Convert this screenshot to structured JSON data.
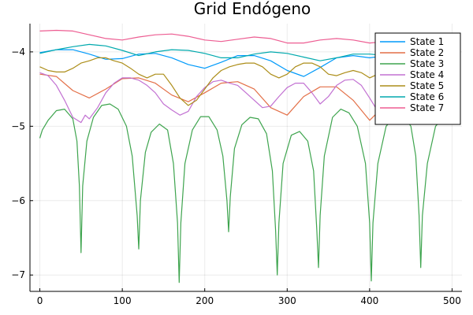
{
  "chart_data": {
    "type": "line",
    "title": "Grid Endógeno",
    "xlabel": "",
    "ylabel": "",
    "xlim": [
      -12,
      512
    ],
    "ylim": [
      -7.22,
      -3.62
    ],
    "xticks": [
      0,
      100,
      200,
      300,
      400,
      500
    ],
    "yticks": [
      -7,
      -6,
      -5,
      -4
    ],
    "xtick_labels": [
      "0",
      "100",
      "200",
      "300",
      "400",
      "500"
    ],
    "ytick_labels": [
      "−7",
      "−6",
      "−5",
      "−4"
    ],
    "grid": true,
    "legend_position": "top-right",
    "series": [
      {
        "name": "State 1",
        "color": "#009AFA",
        "x": [
          0,
          20,
          40,
          60,
          80,
          100,
          120,
          140,
          160,
          180,
          200,
          220,
          240,
          260,
          280,
          300,
          320,
          340,
          360,
          380,
          400,
          420,
          440,
          460,
          480,
          500
        ],
        "y": [
          -4.01,
          -3.97,
          -3.97,
          -4.03,
          -4.1,
          -4.09,
          -4.03,
          -4.02,
          -4.08,
          -4.17,
          -4.22,
          -4.14,
          -4.05,
          -4.05,
          -4.12,
          -4.25,
          -4.33,
          -4.21,
          -4.08,
          -4.05,
          -4.08,
          -4.05,
          -4.02,
          -4.02,
          -4.05,
          -4.06
        ]
      },
      {
        "name": "State 2",
        "color": "#E36F47",
        "x": [
          0,
          20,
          40,
          60,
          80,
          100,
          120,
          140,
          160,
          180,
          200,
          220,
          240,
          260,
          280,
          300,
          320,
          340,
          360,
          380,
          400,
          420,
          440,
          460,
          480,
          500
        ],
        "y": [
          -4.3,
          -4.33,
          -4.52,
          -4.62,
          -4.5,
          -4.36,
          -4.35,
          -4.42,
          -4.58,
          -4.67,
          -4.55,
          -4.42,
          -4.4,
          -4.5,
          -4.75,
          -4.85,
          -4.6,
          -4.47,
          -4.47,
          -4.65,
          -4.92,
          -4.7,
          -4.6,
          -4.55,
          -4.5,
          -4.62
        ]
      },
      {
        "name": "State 3",
        "color": "#3EA44E",
        "x": [
          0,
          3,
          10,
          20,
          30,
          40,
          45,
          48,
          50,
          52,
          57,
          65,
          75,
          85,
          95,
          105,
          112,
          118,
          120,
          122,
          128,
          135,
          145,
          155,
          162,
          167,
          169,
          171,
          176,
          185,
          195,
          205,
          215,
          222,
          227,
          229,
          231,
          236,
          245,
          255,
          265,
          275,
          282,
          286,
          288,
          290,
          295,
          305,
          315,
          325,
          332,
          336,
          338,
          340,
          345,
          355,
          365,
          375,
          385,
          395,
          400,
          402,
          404,
          410,
          420,
          430,
          440,
          450,
          456,
          460,
          462,
          464,
          470,
          480,
          490,
          500
        ],
        "y": [
          -5.16,
          -5.05,
          -4.92,
          -4.79,
          -4.77,
          -4.9,
          -5.2,
          -5.8,
          -6.7,
          -5.8,
          -5.2,
          -4.88,
          -4.72,
          -4.7,
          -4.77,
          -5.0,
          -5.4,
          -6.2,
          -6.65,
          -6.0,
          -5.35,
          -5.08,
          -4.97,
          -5.05,
          -5.5,
          -6.3,
          -7.1,
          -6.3,
          -5.5,
          -5.05,
          -4.87,
          -4.87,
          -5.05,
          -5.4,
          -6.0,
          -6.42,
          -5.95,
          -5.3,
          -4.98,
          -4.88,
          -4.9,
          -5.1,
          -5.6,
          -6.4,
          -7.0,
          -6.3,
          -5.5,
          -5.12,
          -5.07,
          -5.2,
          -5.6,
          -6.4,
          -6.9,
          -6.2,
          -5.4,
          -4.88,
          -4.77,
          -4.82,
          -5.0,
          -5.5,
          -6.3,
          -7.08,
          -6.3,
          -5.5,
          -5.0,
          -4.88,
          -4.85,
          -5.0,
          -5.4,
          -6.2,
          -6.9,
          -6.2,
          -5.5,
          -5.0,
          -4.88,
          -4.78
        ]
      },
      {
        "name": "State 4",
        "color": "#C271D2",
        "x": [
          0,
          10,
          20,
          30,
          40,
          50,
          55,
          60,
          70,
          80,
          90,
          100,
          110,
          120,
          130,
          140,
          150,
          160,
          170,
          180,
          190,
          200,
          210,
          220,
          230,
          240,
          250,
          260,
          270,
          280,
          290,
          300,
          310,
          320,
          330,
          340,
          350,
          360,
          370,
          380,
          390,
          400,
          410,
          420,
          430,
          440,
          450,
          460,
          470,
          480,
          490,
          500
        ],
        "y": [
          -4.28,
          -4.32,
          -4.45,
          -4.65,
          -4.88,
          -4.95,
          -4.85,
          -4.9,
          -4.75,
          -4.55,
          -4.42,
          -4.35,
          -4.35,
          -4.38,
          -4.45,
          -4.55,
          -4.7,
          -4.78,
          -4.85,
          -4.8,
          -4.6,
          -4.48,
          -4.4,
          -4.38,
          -4.42,
          -4.45,
          -4.55,
          -4.65,
          -4.75,
          -4.73,
          -4.6,
          -4.48,
          -4.42,
          -4.42,
          -4.55,
          -4.7,
          -4.6,
          -4.45,
          -4.38,
          -4.37,
          -4.45,
          -4.62,
          -4.8,
          -4.75,
          -4.55,
          -4.42,
          -4.38,
          -4.43,
          -4.6,
          -4.78,
          -4.85,
          -4.93
        ]
      },
      {
        "name": "State 5",
        "color": "#AC8D18",
        "x": [
          0,
          10,
          20,
          30,
          40,
          50,
          60,
          70,
          80,
          90,
          100,
          110,
          120,
          130,
          140,
          150,
          160,
          170,
          180,
          190,
          200,
          210,
          220,
          230,
          240,
          250,
          260,
          270,
          280,
          290,
          300,
          310,
          320,
          330,
          340,
          350,
          360,
          370,
          380,
          390,
          400,
          410,
          420,
          430,
          440,
          450,
          460,
          470,
          480,
          490,
          500
        ],
        "y": [
          -4.2,
          -4.25,
          -4.27,
          -4.27,
          -4.22,
          -4.15,
          -4.12,
          -4.08,
          -4.08,
          -4.12,
          -4.15,
          -4.22,
          -4.3,
          -4.35,
          -4.3,
          -4.3,
          -4.45,
          -4.62,
          -4.72,
          -4.65,
          -4.5,
          -4.35,
          -4.25,
          -4.2,
          -4.17,
          -4.15,
          -4.15,
          -4.2,
          -4.3,
          -4.35,
          -4.3,
          -4.2,
          -4.15,
          -4.15,
          -4.2,
          -4.3,
          -4.32,
          -4.28,
          -4.25,
          -4.28,
          -4.35,
          -4.3,
          -4.25,
          -4.22,
          -4.25,
          -4.3,
          -4.4,
          -4.52,
          -4.62,
          -4.6,
          -4.45
        ]
      },
      {
        "name": "State 6",
        "color": "#00A9AD",
        "x": [
          0,
          20,
          40,
          60,
          80,
          100,
          120,
          140,
          160,
          180,
          200,
          220,
          240,
          260,
          280,
          300,
          320,
          340,
          360,
          380,
          400,
          420,
          440,
          460,
          480,
          500
        ],
        "y": [
          -4.02,
          -3.97,
          -3.93,
          -3.9,
          -3.92,
          -3.98,
          -4.05,
          -4.0,
          -3.97,
          -3.98,
          -4.02,
          -4.08,
          -4.08,
          -4.03,
          -4.0,
          -4.02,
          -4.07,
          -4.12,
          -4.08,
          -4.03,
          -4.03,
          -4.05,
          -4.06,
          -4.05,
          -4.03,
          -4.04
        ]
      },
      {
        "name": "State 7",
        "color": "#ED5D92",
        "x": [
          0,
          20,
          40,
          60,
          80,
          100,
          120,
          140,
          160,
          180,
          200,
          220,
          240,
          260,
          280,
          300,
          320,
          340,
          360,
          380,
          400,
          420,
          440,
          460,
          480,
          500
        ],
        "y": [
          -3.72,
          -3.71,
          -3.72,
          -3.77,
          -3.82,
          -3.84,
          -3.8,
          -3.77,
          -3.76,
          -3.79,
          -3.84,
          -3.86,
          -3.83,
          -3.8,
          -3.82,
          -3.88,
          -3.88,
          -3.84,
          -3.82,
          -3.84,
          -3.88,
          -3.86,
          -3.84,
          -3.87,
          -3.88,
          -3.87
        ]
      }
    ]
  }
}
